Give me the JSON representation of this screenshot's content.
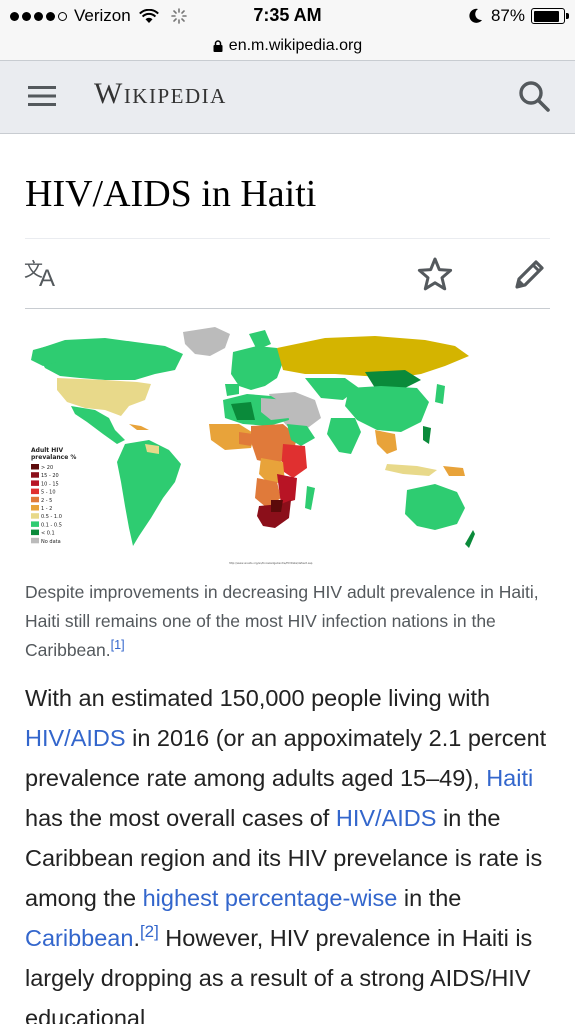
{
  "status_bar": {
    "carrier": "Verizon",
    "time": "7:35 AM",
    "battery": "87%",
    "battery_level": 0.87
  },
  "browser": {
    "url": "en.m.wikipedia.org"
  },
  "header": {
    "wordmark": "Wikipedia"
  },
  "article": {
    "title": "HIV/AIDS in Haiti",
    "figure": {
      "legend_title_1": "Adult HIV",
      "legend_title_2": "prevalance %",
      "legend_items": [
        {
          "label": "> 20",
          "color": "#5c0a0a"
        },
        {
          "label": "15 - 20",
          "color": "#8b0f1a"
        },
        {
          "label": "10 - 15",
          "color": "#b81425"
        },
        {
          "label": "5 - 10",
          "color": "#e03030"
        },
        {
          "label": "2 - 5",
          "color": "#e07a3a"
        },
        {
          "label": "1 - 2",
          "color": "#e8a33a"
        },
        {
          "label": "0.5 - 1.0",
          "color": "#e8d98a"
        },
        {
          "label": "0.1 - 0.5",
          "color": "#2ecc71"
        },
        {
          "label": "< 0.1",
          "color": "#0a8a3a"
        },
        {
          "label": "No data",
          "color": "#bbbbbb"
        }
      ],
      "source": "http://www.unaids.org/en/KnowledgeCentre/HIVData/default.asp",
      "caption": "Despite improvements in decreasing HIV adult prevalence in Haiti, Haiti still remains one of the most HIV infection nations in the Caribbean.",
      "caption_ref": "[1]"
    },
    "paragraph": {
      "t1": "With an estimated 150,000 people living with ",
      "l1": "HIV/AIDS",
      "t2": " in 2016 (or an appoximately 2.1 percent prevalence rate among adults aged 15–49), ",
      "l2": "Haiti",
      "t3": " has the most overall cases of ",
      "l3": "HIV/AIDS",
      "t4": " in the Caribbean region and its HIV prevelance is rate is among the ",
      "l4": "highest percentage-wise",
      "t5": " in the ",
      "l5": "Caribbean",
      "t6": ".",
      "ref2": "[2]",
      "t7": " However, HIV prevalence in Haiti is largely dropping as a result of a strong AIDS/HIV educational"
    }
  },
  "colors": {
    "link": "#3366cc",
    "header_bg": "#eaecf0",
    "caption_text": "#54595d"
  }
}
